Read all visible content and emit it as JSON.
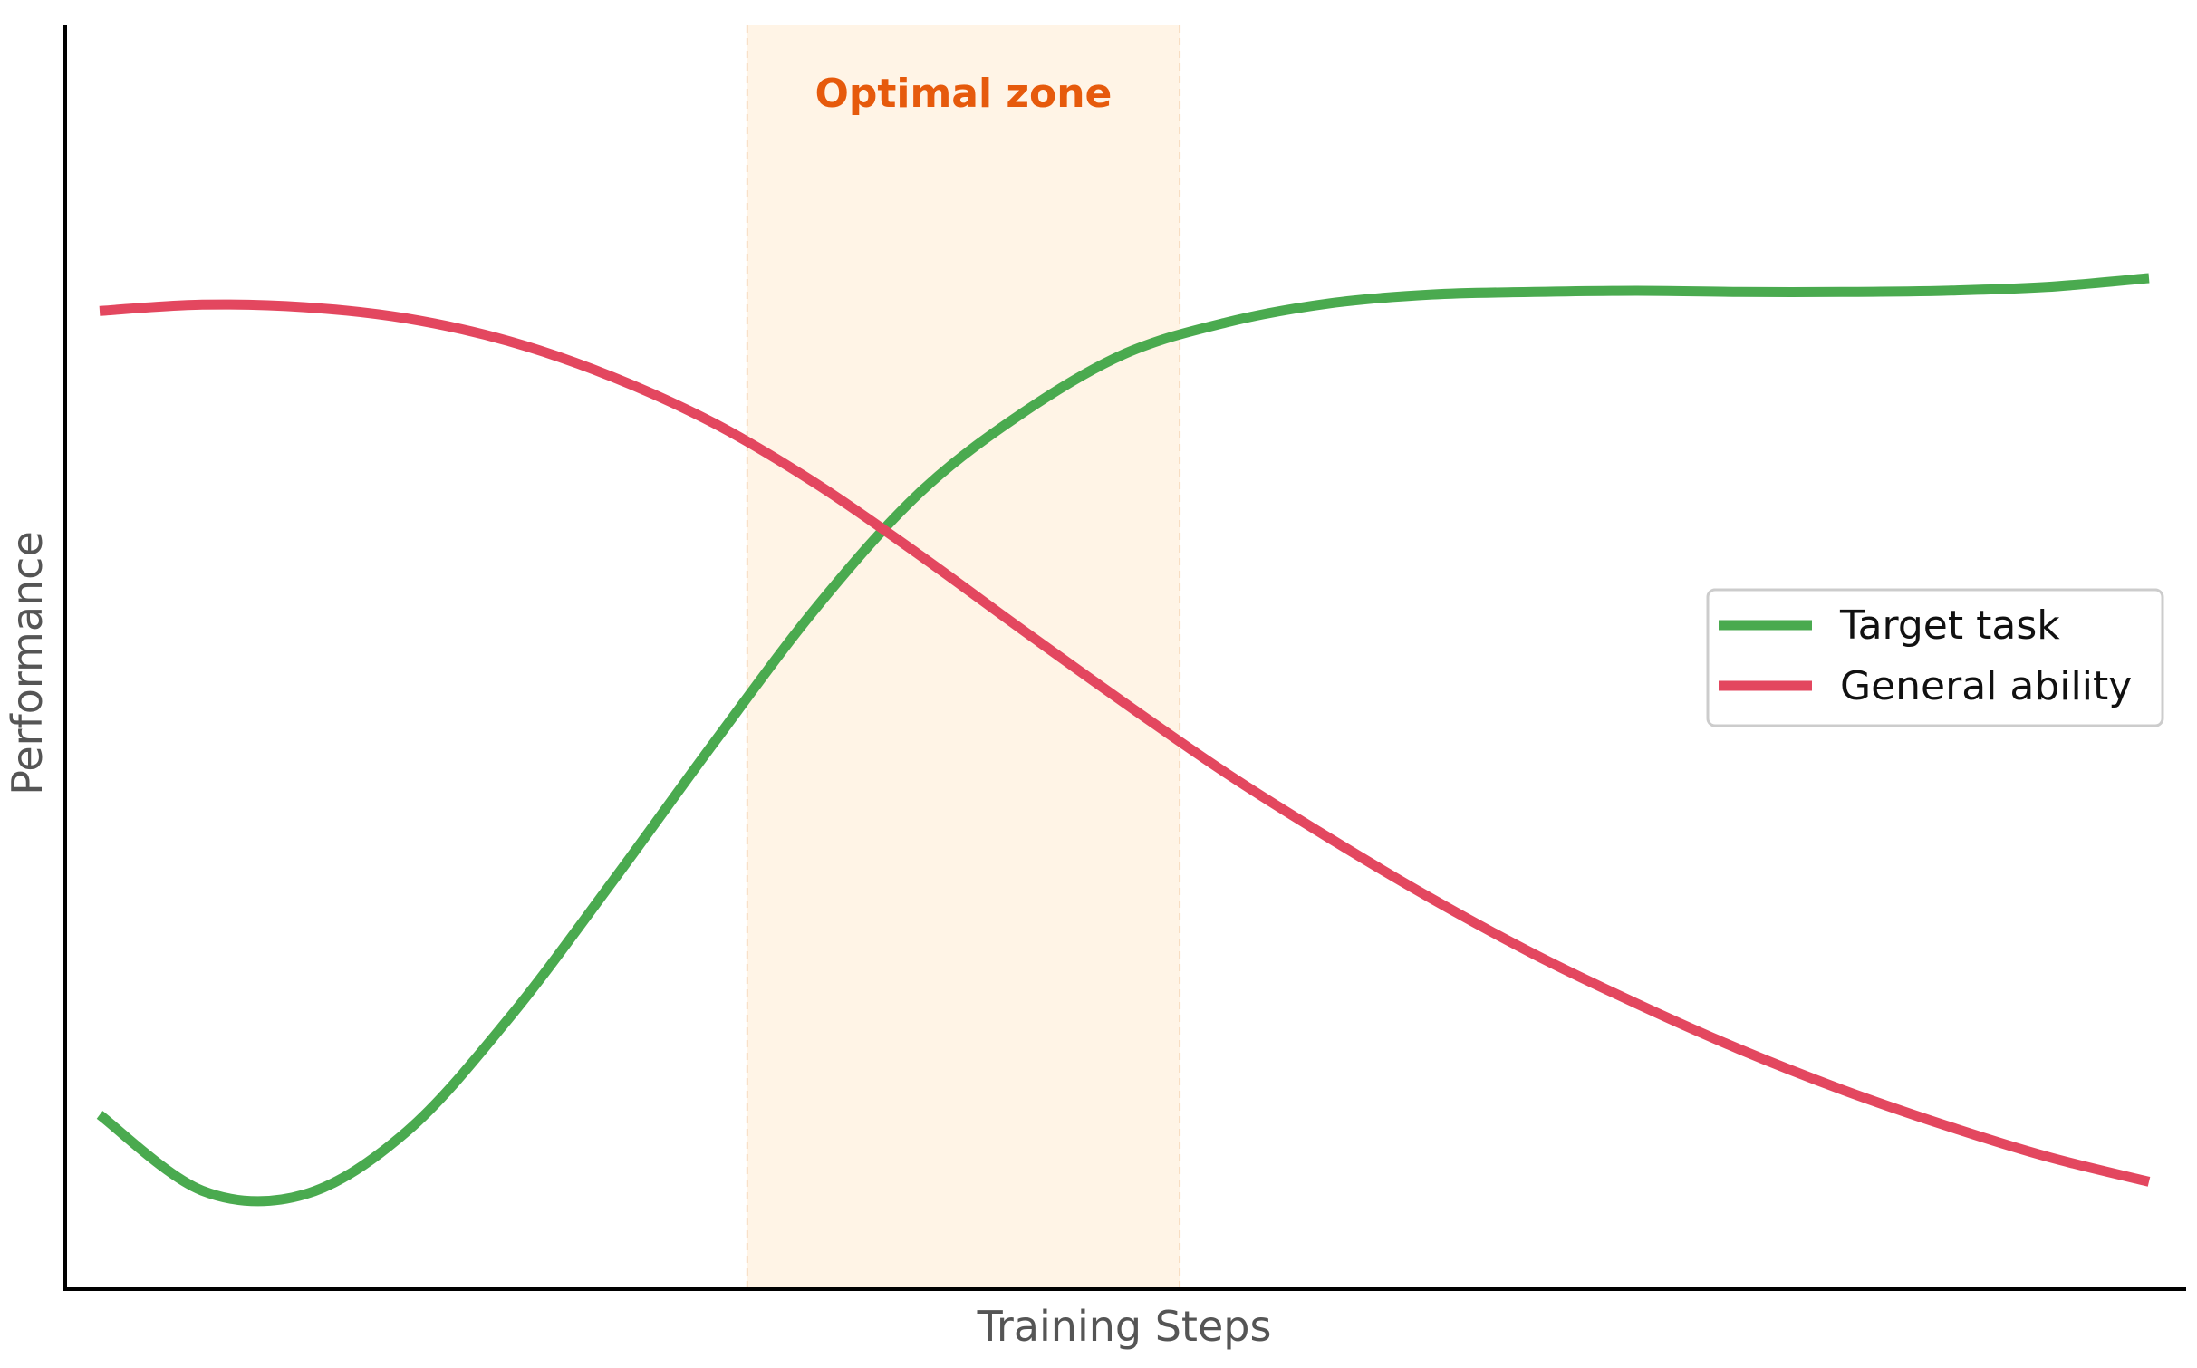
{
  "chart_data": {
    "type": "line",
    "title": "",
    "xlabel": "Training Steps",
    "ylabel": "Performance",
    "xlim": [
      0,
      1
    ],
    "ylim": [
      0,
      1
    ],
    "grid": false,
    "ticks": false,
    "legend_position": "right",
    "x": [
      0.0,
      0.05,
      0.1,
      0.15,
      0.2,
      0.25,
      0.3,
      0.35,
      0.4,
      0.45,
      0.5,
      0.55,
      0.6,
      0.65,
      0.7,
      0.75,
      0.8,
      0.85,
      0.9,
      0.95,
      1.0
    ],
    "series": [
      {
        "name": "Target task",
        "color": "#4aaa4f",
        "values": [
          0.138,
          0.078,
          0.075,
          0.125,
          0.215,
          0.322,
          0.433,
          0.54,
          0.63,
          0.693,
          0.74,
          0.765,
          0.78,
          0.787,
          0.789,
          0.79,
          0.789,
          0.789,
          0.79,
          0.793,
          0.8
        ]
      },
      {
        "name": "General ability",
        "color": "#e3475f",
        "values": [
          0.774,
          0.779,
          0.777,
          0.768,
          0.75,
          0.722,
          0.685,
          0.637,
          0.581,
          0.522,
          0.464,
          0.408,
          0.357,
          0.309,
          0.265,
          0.226,
          0.19,
          0.158,
          0.13,
          0.105,
          0.085
        ]
      }
    ],
    "annotations": [
      {
        "text": "Optimal zone",
        "x_range": [
          0.316,
          0.527
        ],
        "fill_color": "#fff4e6",
        "text_color": "#e65a0c"
      }
    ]
  }
}
